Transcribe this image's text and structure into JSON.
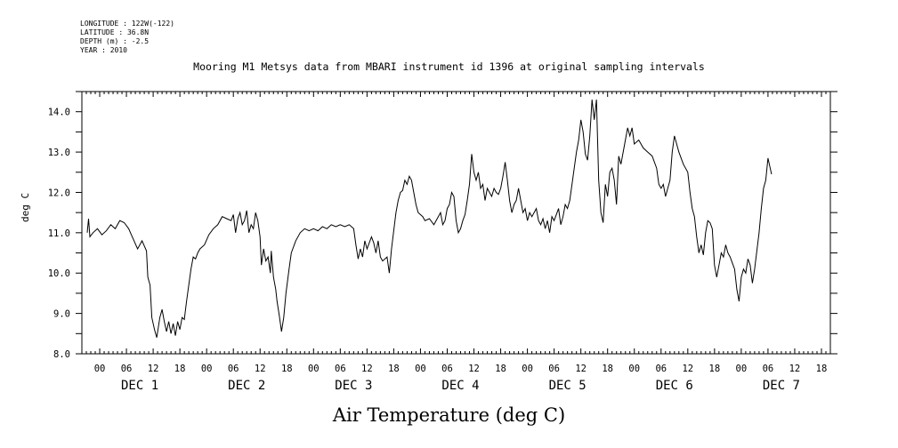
{
  "meta": {
    "longitude": "LONGITUDE : 122W(-122)",
    "latitude": "LATITUDE : 36.8N",
    "depth": "DEPTH (m) : -2.5",
    "year": "YEAR : 2010"
  },
  "chart_data": {
    "type": "line",
    "title": "Mooring M1 Metsys data from MBARI instrument id 1396 at original sampling intervals",
    "xlabel": "Air Temperature (deg C)",
    "ylabel": "deg C",
    "ylim": [
      8.0,
      14.5
    ],
    "xlim_hours": [
      -4,
      164
    ],
    "y_ticks": [
      "8.0",
      "9.0",
      "10.0",
      "11.0",
      "12.0",
      "13.0",
      "14.0"
    ],
    "x_hour_ticks": [
      "00",
      "06",
      "12",
      "18",
      "00",
      "06",
      "12",
      "18",
      "00",
      "06",
      "12",
      "18",
      "00",
      "06",
      "12",
      "18",
      "00",
      "06",
      "12",
      "18",
      "00",
      "06",
      "12",
      "18",
      "00",
      "06",
      "12",
      "18"
    ],
    "x_day_labels": [
      "DEC  1",
      "DEC  2",
      "DEC  3",
      "DEC  4",
      "DEC  5",
      "DEC  6",
      "DEC  7"
    ],
    "series": [
      {
        "points": [
          [
            -2.8,
            11.0
          ],
          [
            -2.5,
            11.35
          ],
          [
            -2.2,
            10.9
          ],
          [
            -1.5,
            11.0
          ],
          [
            -0.5,
            11.1
          ],
          [
            0.5,
            10.95
          ],
          [
            1.5,
            11.05
          ],
          [
            2.5,
            11.2
          ],
          [
            3.5,
            11.1
          ],
          [
            4.5,
            11.3
          ],
          [
            5.5,
            11.25
          ],
          [
            6.5,
            11.1
          ],
          [
            7.5,
            10.85
          ],
          [
            8.5,
            10.6
          ],
          [
            9.5,
            10.8
          ],
          [
            10.5,
            10.55
          ],
          [
            10.8,
            9.9
          ],
          [
            11.3,
            9.7
          ],
          [
            11.7,
            8.9
          ],
          [
            12.3,
            8.6
          ],
          [
            12.8,
            8.4
          ],
          [
            13.5,
            8.9
          ],
          [
            14.0,
            9.1
          ],
          [
            14.5,
            8.8
          ],
          [
            15.0,
            8.55
          ],
          [
            15.5,
            8.8
          ],
          [
            16.0,
            8.5
          ],
          [
            16.5,
            8.75
          ],
          [
            17.0,
            8.45
          ],
          [
            17.5,
            8.8
          ],
          [
            18.0,
            8.6
          ],
          [
            18.5,
            8.9
          ],
          [
            19.0,
            8.85
          ],
          [
            19.5,
            9.3
          ],
          [
            20.0,
            9.7
          ],
          [
            20.5,
            10.1
          ],
          [
            21.0,
            10.4
          ],
          [
            21.5,
            10.35
          ],
          [
            22.0,
            10.5
          ],
          [
            22.5,
            10.6
          ],
          [
            23.5,
            10.7
          ],
          [
            24.5,
            10.95
          ],
          [
            25.5,
            11.1
          ],
          [
            26.5,
            11.2
          ],
          [
            27.5,
            11.4
          ],
          [
            28.5,
            11.35
          ],
          [
            29.5,
            11.3
          ],
          [
            30.0,
            11.45
          ],
          [
            30.5,
            11.0
          ],
          [
            31.0,
            11.35
          ],
          [
            31.5,
            11.5
          ],
          [
            32.0,
            11.2
          ],
          [
            32.5,
            11.3
          ],
          [
            33.0,
            11.55
          ],
          [
            33.5,
            11.0
          ],
          [
            34.0,
            11.2
          ],
          [
            34.5,
            11.1
          ],
          [
            35.0,
            11.5
          ],
          [
            35.5,
            11.3
          ],
          [
            36.0,
            10.9
          ],
          [
            36.3,
            10.2
          ],
          [
            36.8,
            10.6
          ],
          [
            37.3,
            10.3
          ],
          [
            37.8,
            10.4
          ],
          [
            38.3,
            10.0
          ],
          [
            38.5,
            10.55
          ],
          [
            39.0,
            9.9
          ],
          [
            39.5,
            9.6
          ],
          [
            39.8,
            9.3
          ],
          [
            40.3,
            8.95
          ],
          [
            40.8,
            8.55
          ],
          [
            41.3,
            8.9
          ],
          [
            41.8,
            9.5
          ],
          [
            42.5,
            10.1
          ],
          [
            43.0,
            10.5
          ],
          [
            44.0,
            10.8
          ],
          [
            45.0,
            11.0
          ],
          [
            46.0,
            11.1
          ],
          [
            47.0,
            11.05
          ],
          [
            48.0,
            11.1
          ],
          [
            49.0,
            11.05
          ],
          [
            50.0,
            11.15
          ],
          [
            51.0,
            11.1
          ],
          [
            52.0,
            11.2
          ],
          [
            53.0,
            11.15
          ],
          [
            54.0,
            11.2
          ],
          [
            55.0,
            11.15
          ],
          [
            56.0,
            11.2
          ],
          [
            57.0,
            11.1
          ],
          [
            57.5,
            10.7
          ],
          [
            58.0,
            10.35
          ],
          [
            58.5,
            10.6
          ],
          [
            59.0,
            10.4
          ],
          [
            59.5,
            10.8
          ],
          [
            60.0,
            10.6
          ],
          [
            61.0,
            10.9
          ],
          [
            61.5,
            10.75
          ],
          [
            62.0,
            10.5
          ],
          [
            62.5,
            10.8
          ],
          [
            63.0,
            10.4
          ],
          [
            63.5,
            10.3
          ],
          [
            64.5,
            10.4
          ],
          [
            65.0,
            10.0
          ],
          [
            65.5,
            10.6
          ],
          [
            66.0,
            11.05
          ],
          [
            66.5,
            11.5
          ],
          [
            67.0,
            11.8
          ],
          [
            67.5,
            12.0
          ],
          [
            68.0,
            12.05
          ],
          [
            68.5,
            12.3
          ],
          [
            69.0,
            12.2
          ],
          [
            69.5,
            12.4
          ],
          [
            70.0,
            12.3
          ],
          [
            70.5,
            12.0
          ],
          [
            71.0,
            11.7
          ],
          [
            71.5,
            11.5
          ],
          [
            72.5,
            11.4
          ],
          [
            73.0,
            11.3
          ],
          [
            74.0,
            11.35
          ],
          [
            75.0,
            11.2
          ],
          [
            76.0,
            11.4
          ],
          [
            76.5,
            11.5
          ],
          [
            77.0,
            11.2
          ],
          [
            77.5,
            11.3
          ],
          [
            78.0,
            11.6
          ],
          [
            78.5,
            11.7
          ],
          [
            79.0,
            12.0
          ],
          [
            79.5,
            11.9
          ],
          [
            80.0,
            11.3
          ],
          [
            80.5,
            11.0
          ],
          [
            81.0,
            11.1
          ],
          [
            81.5,
            11.3
          ],
          [
            82.0,
            11.45
          ],
          [
            82.5,
            11.8
          ],
          [
            83.0,
            12.2
          ],
          [
            83.5,
            12.95
          ],
          [
            84.0,
            12.5
          ],
          [
            84.5,
            12.3
          ],
          [
            85.0,
            12.5
          ],
          [
            85.5,
            12.1
          ],
          [
            86.0,
            12.2
          ],
          [
            86.5,
            11.8
          ],
          [
            87.0,
            12.1
          ],
          [
            87.5,
            12.0
          ],
          [
            88.0,
            11.9
          ],
          [
            88.5,
            12.1
          ],
          [
            89.0,
            12.0
          ],
          [
            89.5,
            11.95
          ],
          [
            90.0,
            12.1
          ],
          [
            90.5,
            12.4
          ],
          [
            91.0,
            12.75
          ],
          [
            91.5,
            12.3
          ],
          [
            92.0,
            11.8
          ],
          [
            92.5,
            11.5
          ],
          [
            93.0,
            11.7
          ],
          [
            93.5,
            11.8
          ],
          [
            94.0,
            12.1
          ],
          [
            94.5,
            11.8
          ],
          [
            95.0,
            11.5
          ],
          [
            95.5,
            11.6
          ],
          [
            96.0,
            11.3
          ],
          [
            96.5,
            11.5
          ],
          [
            97.0,
            11.4
          ],
          [
            97.5,
            11.5
          ],
          [
            98.0,
            11.6
          ],
          [
            98.5,
            11.3
          ],
          [
            99.0,
            11.2
          ],
          [
            99.5,
            11.35
          ],
          [
            100.0,
            11.1
          ],
          [
            100.5,
            11.3
          ],
          [
            101.0,
            11.0
          ],
          [
            101.5,
            11.4
          ],
          [
            102.0,
            11.3
          ],
          [
            102.5,
            11.45
          ],
          [
            103.0,
            11.6
          ],
          [
            103.5,
            11.2
          ],
          [
            104.0,
            11.4
          ],
          [
            104.5,
            11.7
          ],
          [
            105.0,
            11.6
          ],
          [
            105.5,
            11.8
          ],
          [
            106.0,
            12.2
          ],
          [
            106.5,
            12.6
          ],
          [
            107.0,
            13.0
          ],
          [
            107.5,
            13.3
          ],
          [
            108.0,
            13.8
          ],
          [
            108.5,
            13.5
          ],
          [
            109.0,
            12.95
          ],
          [
            109.5,
            12.8
          ],
          [
            110.0,
            13.4
          ],
          [
            110.5,
            14.3
          ],
          [
            111.0,
            13.8
          ],
          [
            111.5,
            14.3
          ],
          [
            112.0,
            12.3
          ],
          [
            112.5,
            11.5
          ],
          [
            113.0,
            11.25
          ],
          [
            113.5,
            12.2
          ],
          [
            114.0,
            11.9
          ],
          [
            114.5,
            12.5
          ],
          [
            115.0,
            12.6
          ],
          [
            115.5,
            12.3
          ],
          [
            116.0,
            11.7
          ],
          [
            116.5,
            12.9
          ],
          [
            117.0,
            12.7
          ],
          [
            117.5,
            13.0
          ],
          [
            118.0,
            13.3
          ],
          [
            118.5,
            13.6
          ],
          [
            119.0,
            13.4
          ],
          [
            119.5,
            13.6
          ],
          [
            120.0,
            13.2
          ],
          [
            121.0,
            13.3
          ],
          [
            122.0,
            13.1
          ],
          [
            123.0,
            13.0
          ],
          [
            124.0,
            12.9
          ],
          [
            125.0,
            12.6
          ],
          [
            125.5,
            12.2
          ],
          [
            126.0,
            12.1
          ],
          [
            126.5,
            12.2
          ],
          [
            127.0,
            11.9
          ],
          [
            127.5,
            12.1
          ],
          [
            128.0,
            12.3
          ],
          [
            128.5,
            13.0
          ],
          [
            129.0,
            13.4
          ],
          [
            129.5,
            13.2
          ],
          [
            130.0,
            13.0
          ],
          [
            131.0,
            12.7
          ],
          [
            132.0,
            12.5
          ],
          [
            132.5,
            12.0
          ],
          [
            133.0,
            11.6
          ],
          [
            133.5,
            11.4
          ],
          [
            134.0,
            10.9
          ],
          [
            134.5,
            10.5
          ],
          [
            135.0,
            10.7
          ],
          [
            135.5,
            10.45
          ],
          [
            136.0,
            11.0
          ],
          [
            136.5,
            11.3
          ],
          [
            137.0,
            11.25
          ],
          [
            137.5,
            11.1
          ],
          [
            138.0,
            10.2
          ],
          [
            138.5,
            9.9
          ],
          [
            139.0,
            10.2
          ],
          [
            139.5,
            10.5
          ],
          [
            140.0,
            10.4
          ],
          [
            140.5,
            10.7
          ],
          [
            141.0,
            10.5
          ],
          [
            141.5,
            10.4
          ],
          [
            142.0,
            10.25
          ],
          [
            142.5,
            10.1
          ],
          [
            143.0,
            9.6
          ],
          [
            143.5,
            9.3
          ],
          [
            144.0,
            9.9
          ],
          [
            144.5,
            10.1
          ],
          [
            145.0,
            10.0
          ],
          [
            145.5,
            10.35
          ],
          [
            146.0,
            10.2
          ],
          [
            146.5,
            9.75
          ],
          [
            147.0,
            10.1
          ],
          [
            148.0,
            11.0
          ],
          [
            148.5,
            11.6
          ],
          [
            149.0,
            12.1
          ],
          [
            149.5,
            12.3
          ],
          [
            150.0,
            12.85
          ],
          [
            150.5,
            12.6
          ],
          [
            150.8,
            12.45
          ]
        ]
      }
    ]
  }
}
